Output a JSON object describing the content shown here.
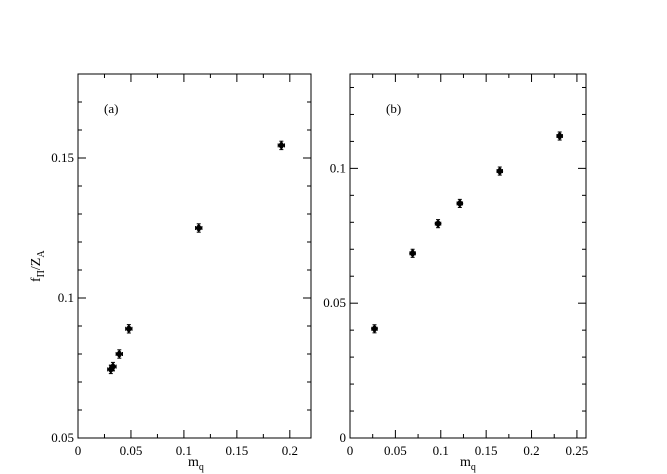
{
  "chart_data": [
    {
      "type": "scatter",
      "panel_label": "(a)",
      "xlabel": "m",
      "xlabel_sub": "q",
      "ylabel": "f",
      "ylabel_sub1": "Π",
      "ylabel_mid": "/Z",
      "ylabel_sub2": "A",
      "xlim": [
        0,
        0.22
      ],
      "ylim": [
        0.05,
        0.18
      ],
      "xticks": [
        0,
        0.05,
        0.1,
        0.15,
        0.2
      ],
      "xtick_labels": [
        "0",
        "0.05",
        "0.1",
        "0.15",
        "0.2"
      ],
      "yticks": [
        0.05,
        0.1,
        0.15
      ],
      "ytick_labels": [
        "0.05",
        "0.1",
        "0.15"
      ],
      "x": [
        0.031,
        0.033,
        0.039,
        0.048,
        0.114,
        0.192
      ],
      "y": [
        0.0745,
        0.0755,
        0.08,
        0.089,
        0.125,
        0.1545
      ],
      "yerr": [
        0.0015,
        0.0015,
        0.0015,
        0.0015,
        0.0015,
        0.0015
      ],
      "xerr": [
        0.003,
        0.003,
        0.003,
        0.003,
        0.003,
        0.003
      ],
      "grid": false
    },
    {
      "type": "scatter",
      "panel_label": "(b)",
      "xlabel": "m",
      "xlabel_sub": "q",
      "ylabel": "",
      "xlim": [
        0,
        0.26
      ],
      "ylim": [
        0,
        0.135
      ],
      "xticks": [
        0,
        0.05,
        0.1,
        0.15,
        0.2,
        0.25
      ],
      "xtick_labels": [
        "0",
        "0.05",
        "0.1",
        "0.15",
        "0.2",
        "0.25"
      ],
      "yticks": [
        0,
        0.05,
        0.1
      ],
      "ytick_labels": [
        "0",
        "0.05",
        "0.1"
      ],
      "x": [
        0.027,
        0.069,
        0.097,
        0.121,
        0.165,
        0.231
      ],
      "y": [
        0.0405,
        0.0685,
        0.0795,
        0.087,
        0.099,
        0.112
      ],
      "yerr": [
        0.0015,
        0.0015,
        0.0015,
        0.0015,
        0.0015,
        0.0015
      ],
      "xerr": [
        0.003,
        0.003,
        0.003,
        0.003,
        0.003,
        0.003
      ],
      "grid": false
    }
  ]
}
